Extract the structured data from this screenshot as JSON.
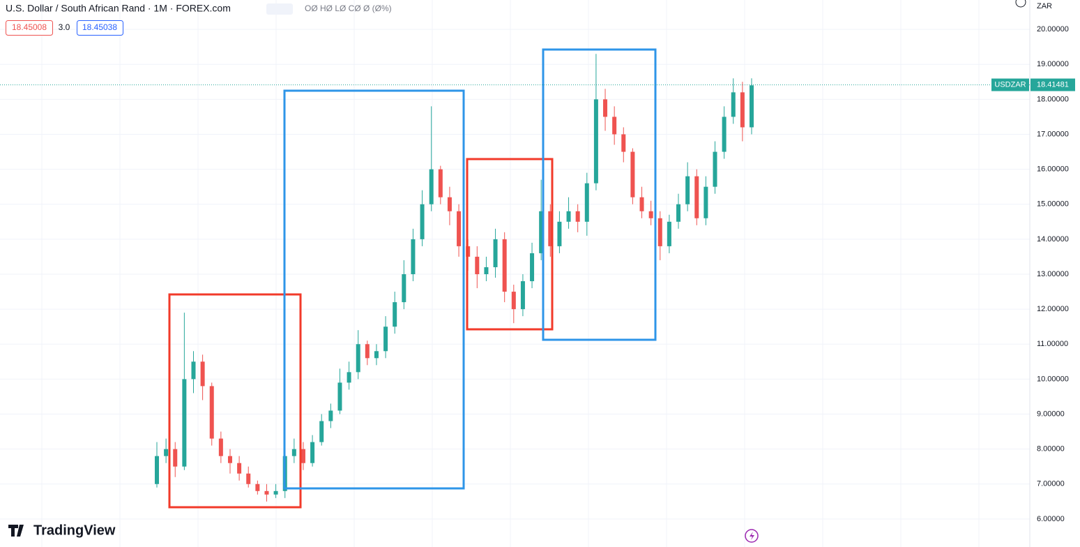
{
  "chart_data": {
    "type": "candlestick",
    "title": "U.S. Dollar / South African Rand · 1M · FOREX.com",
    "ohlc_text": "OØ HØ LØ CØ Ø (Ø%)",
    "bid": 18.45008,
    "spread": "3.0",
    "ask": 18.45038,
    "currency": "ZAR",
    "symbol": "USDZAR",
    "last_price": 18.41481,
    "brand": "TradingView",
    "up_color": "#26a69a",
    "down_color": "#ef5350",
    "ylim": [
      5.2,
      20.84
    ],
    "yticks": [
      {
        "value": 6,
        "label": "6.00000"
      },
      {
        "value": 7,
        "label": "7.00000"
      },
      {
        "value": 8,
        "label": "8.00000"
      },
      {
        "value": 9,
        "label": "9.00000"
      },
      {
        "value": 10,
        "label": "10.00000"
      },
      {
        "value": 11,
        "label": "11.00000"
      },
      {
        "value": 12,
        "label": "12.00000"
      },
      {
        "value": 13,
        "label": "13.00000"
      },
      {
        "value": 14,
        "label": "14.00000"
      },
      {
        "value": 15,
        "label": "15.00000"
      },
      {
        "value": 16,
        "label": "16.00000"
      },
      {
        "value": 17,
        "label": "17.00000"
      },
      {
        "value": 18,
        "label": "18.00000"
      },
      {
        "value": 19,
        "label": "19.00000"
      },
      {
        "value": 20,
        "label": "20.00000"
      }
    ],
    "grid": true,
    "open": [
      7.0,
      7.8,
      8.0,
      7.5,
      10.0,
      10.5,
      9.8,
      8.3,
      7.8,
      7.6,
      7.3,
      7.0,
      6.8,
      6.7,
      6.8,
      7.8,
      8.0,
      7.6,
      8.2,
      8.8,
      9.1,
      9.9,
      10.2,
      11.0,
      10.6,
      10.8,
      11.5,
      12.2,
      13.0,
      14.0,
      15.0,
      16.0,
      15.2,
      14.8,
      13.8,
      13.5,
      13.0,
      13.2,
      14.0,
      12.5,
      12.0,
      12.8,
      13.6,
      14.8,
      13.8,
      14.5,
      14.8,
      14.5,
      15.6,
      18.0,
      17.5,
      17.0,
      16.5,
      15.2,
      14.8,
      14.6,
      13.8,
      14.5,
      15.0,
      15.8,
      14.6,
      15.5,
      16.5,
      17.5,
      18.2,
      17.2
    ],
    "high": [
      8.2,
      8.3,
      8.2,
      11.9,
      10.8,
      10.7,
      9.9,
      8.5,
      8.0,
      7.8,
      7.5,
      7.1,
      7.0,
      7.0,
      8.0,
      8.3,
      8.2,
      8.4,
      9.0,
      9.3,
      10.3,
      10.5,
      11.4,
      11.1,
      11.0,
      11.8,
      12.5,
      13.4,
      14.3,
      15.4,
      17.8,
      16.1,
      15.5,
      15.0,
      14.0,
      13.8,
      13.5,
      14.3,
      14.2,
      12.7,
      13.0,
      13.9,
      15.7,
      15.0,
      14.8,
      15.2,
      15.0,
      15.9,
      19.3,
      18.3,
      17.8,
      17.2,
      16.6,
      15.5,
      15.1,
      14.8,
      14.7,
      15.3,
      16.2,
      16.0,
      15.8,
      16.8,
      17.8,
      18.6,
      18.5,
      18.6
    ],
    "low": [
      6.9,
      7.6,
      7.2,
      7.4,
      9.6,
      9.4,
      8.1,
      7.6,
      7.3,
      7.1,
      6.9,
      6.7,
      6.5,
      6.6,
      6.6,
      7.6,
      7.4,
      7.5,
      8.1,
      8.6,
      9.0,
      9.7,
      10.0,
      10.4,
      10.4,
      10.6,
      11.3,
      12.0,
      12.8,
      13.8,
      14.8,
      15.0,
      14.4,
      13.5,
      13.1,
      12.6,
      12.8,
      12.9,
      12.2,
      11.6,
      11.8,
      12.6,
      13.4,
      13.5,
      13.6,
      14.3,
      14.2,
      14.1,
      15.4,
      17.1,
      16.7,
      16.2,
      15.0,
      14.6,
      14.4,
      13.4,
      13.6,
      14.3,
      14.8,
      14.4,
      14.4,
      15.3,
      16.3,
      17.3,
      16.8,
      17.0
    ],
    "close": [
      7.8,
      8.0,
      7.5,
      10.0,
      10.5,
      9.8,
      8.3,
      7.8,
      7.6,
      7.3,
      7.0,
      6.8,
      6.7,
      6.8,
      7.8,
      8.0,
      7.6,
      8.2,
      8.8,
      9.1,
      9.9,
      10.2,
      11.0,
      10.6,
      10.8,
      11.5,
      12.2,
      13.0,
      14.0,
      15.0,
      16.0,
      15.2,
      14.8,
      13.8,
      13.5,
      13.0,
      13.2,
      14.0,
      12.5,
      12.0,
      12.8,
      13.6,
      14.8,
      13.8,
      14.5,
      14.8,
      14.5,
      15.6,
      18.0,
      17.5,
      17.0,
      16.5,
      15.2,
      14.8,
      14.6,
      13.8,
      14.5,
      15.0,
      15.8,
      14.6,
      15.5,
      16.5,
      17.5,
      18.2,
      17.2,
      18.4
    ]
  }
}
